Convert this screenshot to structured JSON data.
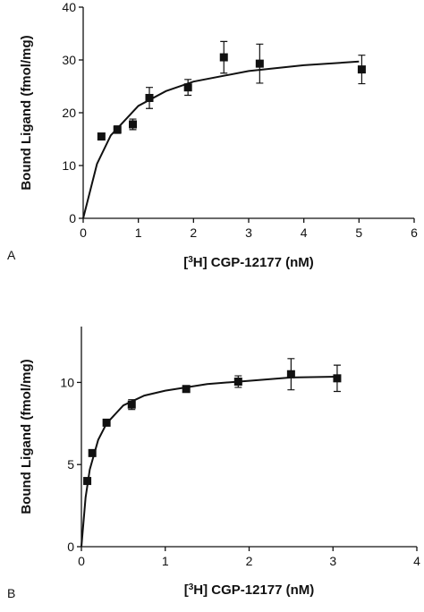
{
  "chart_data": [
    {
      "type": "scatter",
      "panel_label": "A",
      "ylabel": "Bound Ligand (fmol/mg)",
      "xlabel": [
        "[",
        "3",
        "H] CGP-12177 (nM)"
      ],
      "xlim": [
        0,
        6
      ],
      "xticks": [
        0,
        1,
        2,
        3,
        4,
        5,
        6
      ],
      "ylim": [
        0,
        40
      ],
      "yticks": [
        0,
        10,
        20,
        30,
        40
      ],
      "series": [
        {
          "type": "scatter",
          "color": "#111111",
          "x": [
            0.33,
            0.62,
            0.9,
            1.2,
            1.9,
            2.55,
            3.2,
            5.05
          ],
          "values": [
            15.5,
            16.8,
            17.8,
            22.8,
            24.8,
            30.5,
            29.3,
            28.2
          ],
          "errors": [
            0.3,
            0.7,
            1.0,
            2.0,
            1.5,
            3.0,
            3.7,
            2.7
          ]
        },
        {
          "type": "line",
          "color": "#111111",
          "x": [
            0,
            0.25,
            0.5,
            1,
            1.5,
            2,
            3,
            4,
            5
          ],
          "values": [
            0,
            10.3,
            15.7,
            21.3,
            24.1,
            25.9,
            27.9,
            29.0,
            29.7
          ]
        }
      ]
    },
    {
      "type": "scatter",
      "panel_label": "B",
      "ylabel": "Bound Ligand (fmol/mg)",
      "xlabel": [
        "[",
        "3",
        "H] CGP-12177 (nM)"
      ],
      "xlim": [
        0,
        4
      ],
      "xticks": [
        0,
        1,
        2,
        3,
        4
      ],
      "ylim": [
        0,
        13.4
      ],
      "yticks": [
        0,
        5,
        10
      ],
      "series": [
        {
          "type": "scatter",
          "color": "#111111",
          "x": [
            0.07,
            0.13,
            0.3,
            0.6,
            1.25,
            1.87,
            2.5,
            3.05
          ],
          "values": [
            4.0,
            5.7,
            7.55,
            8.65,
            9.6,
            10.05,
            10.5,
            10.25
          ],
          "errors": [
            0.1,
            0.1,
            0.1,
            0.3,
            0.2,
            0.35,
            0.95,
            0.8
          ]
        },
        {
          "type": "line",
          "color": "#111111",
          "x": [
            0,
            0.05,
            0.1,
            0.2,
            0.3,
            0.5,
            0.75,
            1,
            1.5,
            2,
            2.5,
            3.05
          ],
          "values": [
            0,
            3.0,
            4.7,
            6.5,
            7.5,
            8.6,
            9.2,
            9.5,
            9.9,
            10.1,
            10.3,
            10.35
          ]
        }
      ]
    }
  ]
}
